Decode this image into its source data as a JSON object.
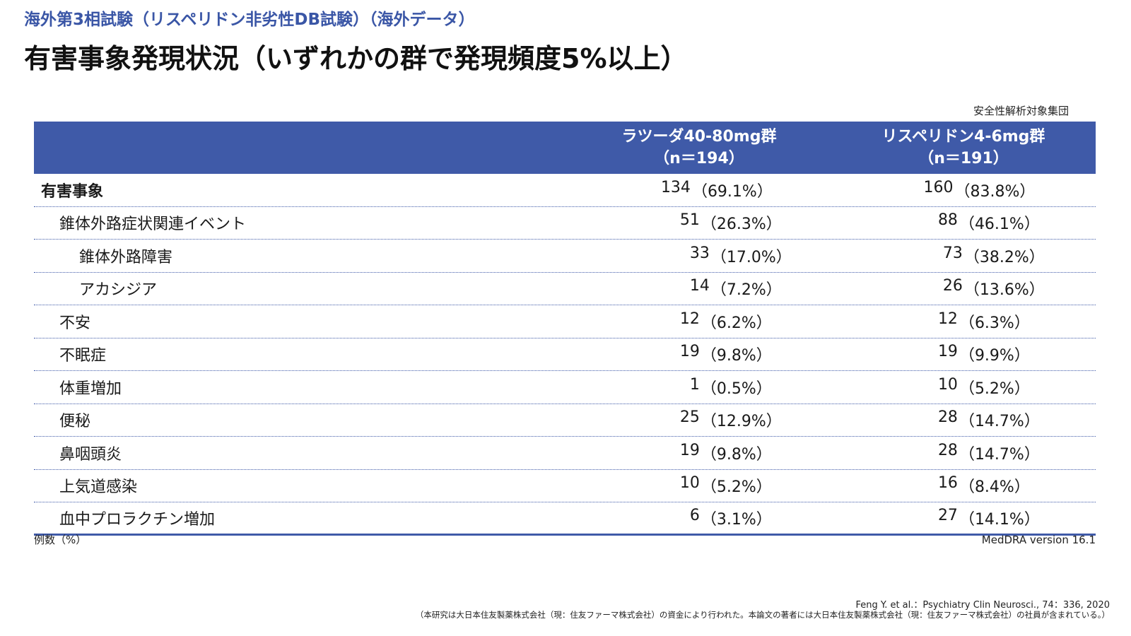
{
  "header": {
    "subtitle": "海外第3相試験（リスペリドン非劣性DB試験）（海外データ）",
    "title": "有害事象発現状況（いずれかの群で発現頻度5%以上）",
    "population": "安全性解析対象集団"
  },
  "table": {
    "columns": [
      {
        "line1": "ラツーダ40-80mg群",
        "line2": "（n＝194）"
      },
      {
        "line1": "リスペリドン4-6mg群",
        "line2": "（n＝191）"
      }
    ],
    "rows": [
      {
        "label": "有害事象",
        "level": 0,
        "c1": "134",
        "p1": "（69.1%）",
        "c2": "160",
        "p2": "（83.8%）"
      },
      {
        "label": "錐体外路症状関連イベント",
        "level": 1,
        "c1": "51",
        "p1": "（26.3%）",
        "c2": "88",
        "p2": "（46.1%）"
      },
      {
        "label": "錐体外路障害",
        "level": 2,
        "c1": "33",
        "p1": "（17.0%）",
        "c2": "73",
        "p2": "（38.2%）"
      },
      {
        "label": "アカシジア",
        "level": 2,
        "c1": "14",
        "p1": "（7.2%）",
        "c2": "26",
        "p2": "（13.6%）"
      },
      {
        "label": "不安",
        "level": 1,
        "c1": "12",
        "p1": "（6.2%）",
        "c2": "12",
        "p2": "（6.3%）"
      },
      {
        "label": "不眠症",
        "level": 1,
        "c1": "19",
        "p1": "（9.8%）",
        "c2": "19",
        "p2": "（9.9%）"
      },
      {
        "label": "体重増加",
        "level": 1,
        "c1": "1",
        "p1": "（0.5%）",
        "c2": "10",
        "p2": "（5.2%）"
      },
      {
        "label": "便秘",
        "level": 1,
        "c1": "25",
        "p1": "（12.9%）",
        "c2": "28",
        "p2": "（14.7%）"
      },
      {
        "label": "鼻咽頭炎",
        "level": 1,
        "c1": "19",
        "p1": "（9.8%）",
        "c2": "28",
        "p2": "（14.7%）"
      },
      {
        "label": "上気道感染",
        "level": 1,
        "c1": "10",
        "p1": "（5.2%）",
        "c2": "16",
        "p2": "（8.4%）"
      },
      {
        "label": "血中プロラクチン増加",
        "level": 1,
        "c1": "6",
        "p1": "（3.1%）",
        "c2": "27",
        "p2": "（14.1%）"
      }
    ]
  },
  "notes": {
    "unit": "例数（%）",
    "dictionary": "MedDRA version 16.1",
    "citation": "Feng Y. et al.：Psychiatry Clin Neurosci., 74：336, 2020",
    "funding": "（本研究は大日本住友製薬株式会社（現：住友ファーマ株式会社）の資金により行われた。本論文の著者には大日本住友製薬株式会社（現：住友ファーマ株式会社）の社員が含まれている。）"
  },
  "colors": {
    "accent": "#3f5aa8",
    "subtitle": "#3a56a6"
  }
}
